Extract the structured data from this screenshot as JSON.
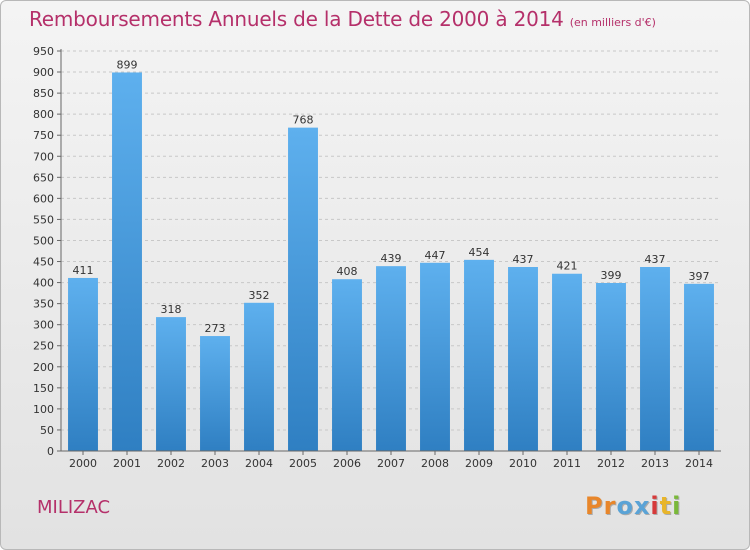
{
  "chart_data": {
    "type": "bar",
    "title": "Remboursements Annuels de la Dette de 2000 à 2014",
    "subtitle": "(en milliers d'€)",
    "categories": [
      "2000",
      "2001",
      "2002",
      "2003",
      "2004",
      "2005",
      "2006",
      "2007",
      "2008",
      "2009",
      "2010",
      "2011",
      "2012",
      "2013",
      "2014"
    ],
    "values": [
      411,
      899,
      318,
      273,
      352,
      768,
      408,
      439,
      447,
      454,
      437,
      421,
      399,
      437,
      397
    ],
    "ylim": [
      0,
      950
    ],
    "ytick_step": 50,
    "grid": "horizontal-dashed",
    "bar_color": "#4a9fe0",
    "xlabel": "",
    "ylabel": ""
  },
  "footer": {
    "commune": "MILIZAC",
    "brand": "Proxiti"
  },
  "colors": {
    "title": "#b5306a",
    "brand_letters": [
      "#e8862a",
      "#e8862a",
      "#5aa3d6",
      "#5aa3d6",
      "#d63a3a",
      "#e8b52a",
      "#7ab83a"
    ]
  }
}
